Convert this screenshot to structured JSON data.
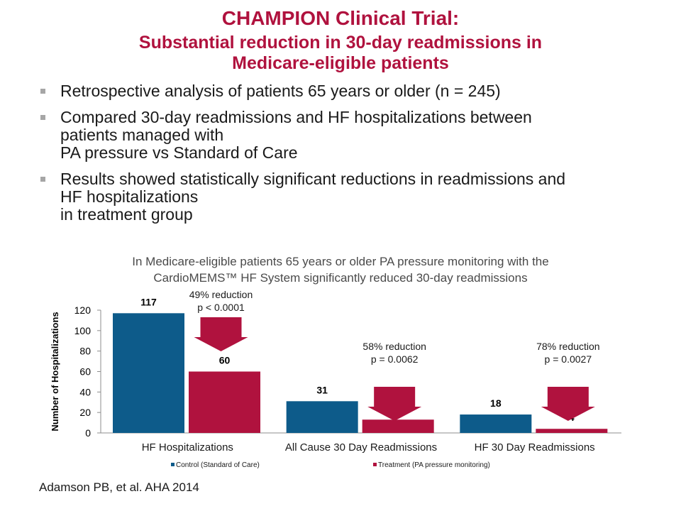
{
  "slide": {
    "title": "CHAMPION Clinical Trial:",
    "subtitle_lines": [
      "Substantial reduction in 30-day readmissions in",
      "Medicare-eligible patients"
    ],
    "bullets": [
      {
        "lines": [
          "Retrospective analysis of patients 65 years or older (n = 245)"
        ]
      },
      {
        "lines": [
          "Compared 30-day readmissions and HF hospitalizations between",
          "patients managed with",
          "PA pressure vs Standard of Care"
        ]
      },
      {
        "lines": [
          "Results showed statistically significant reductions in readmissions and",
          "HF hospitalizations",
          "in treatment group"
        ]
      }
    ],
    "reference": "Adamson PB, et al. AHA 2014",
    "colors": {
      "title": "#b0123e",
      "control": "#0d5b8a",
      "treatment": "#b0123e",
      "bullet": "#a6a6a6"
    }
  },
  "chart_data": {
    "type": "bar",
    "title_lines": [
      "In Medicare-eligible patients 65 years or older PA pressure monitoring with the",
      "CardioMEMS™ HF System significantly reduced 30-day readmissions"
    ],
    "ylabel": "Number of Hospitalizations",
    "xlabel": "",
    "categories": [
      "HF Hospitalizations",
      "All Cause 30 Day Readmissions",
      "HF 30 Day Readmissions"
    ],
    "series": [
      {
        "name": "Control (Standard of Care)",
        "values": [
          117,
          31,
          18
        ],
        "color": "#0d5b8a"
      },
      {
        "name": "Treatment (PA pressure monitoring)",
        "values": [
          60,
          13,
          4
        ],
        "color": "#b0123e"
      }
    ],
    "ylim": [
      0,
      120
    ],
    "yticks": [
      0,
      20,
      40,
      60,
      80,
      100,
      120
    ],
    "annotations": [
      {
        "lines": [
          "49% reduction",
          "p < 0.0001"
        ]
      },
      {
        "lines": [
          "58% reduction",
          "p = 0.0062"
        ]
      },
      {
        "lines": [
          "78% reduction",
          "p = 0.0027"
        ]
      }
    ],
    "legend_position": "bottom",
    "grid": false
  }
}
